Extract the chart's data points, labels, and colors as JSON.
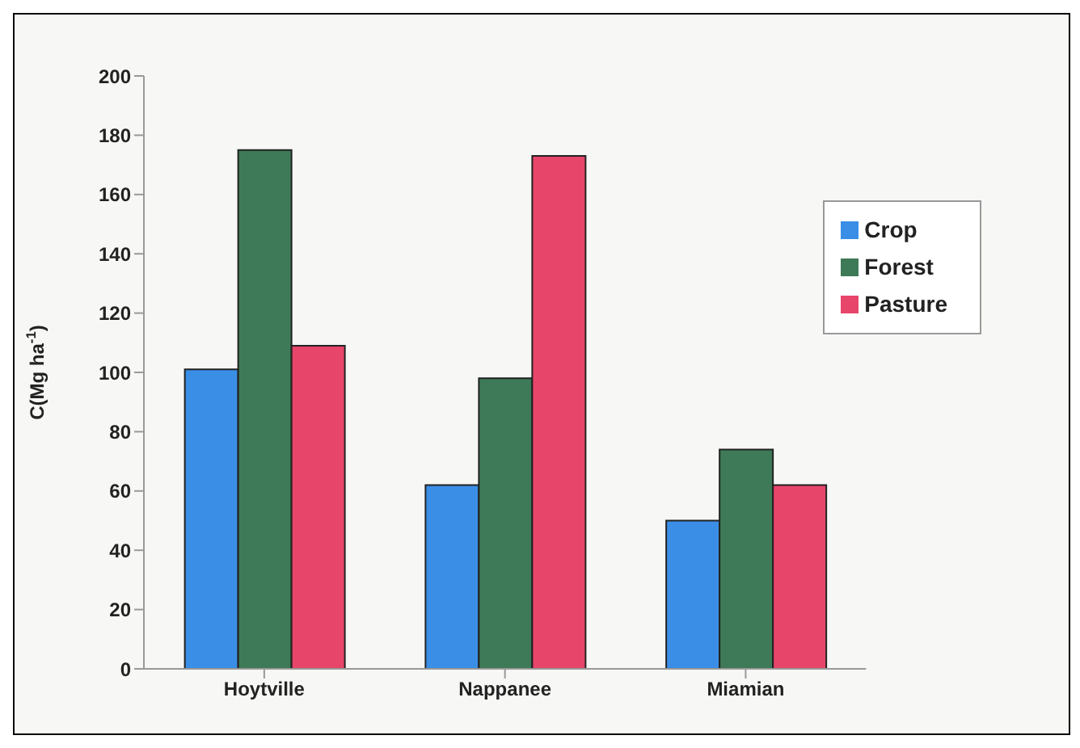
{
  "chart_data": {
    "type": "bar",
    "ylabel": "C(Mg ha$^{-1}$)",
    "categories": [
      "Hoytville",
      "Nappanee",
      "Miamian"
    ],
    "series": [
      {
        "name": "Crop",
        "color": "#3a8ee6",
        "values": [
          101,
          62,
          50
        ]
      },
      {
        "name": "Forest",
        "color": "#3e7a57",
        "values": [
          175,
          98,
          74
        ]
      },
      {
        "name": "Pasture",
        "color": "#e8456a",
        "values": [
          109,
          173,
          62
        ]
      }
    ],
    "ylim": [
      0,
      200
    ],
    "yticks": [
      0,
      20,
      40,
      60,
      80,
      100,
      120,
      140,
      160,
      180,
      200
    ],
    "grid": false,
    "legend": "right"
  }
}
